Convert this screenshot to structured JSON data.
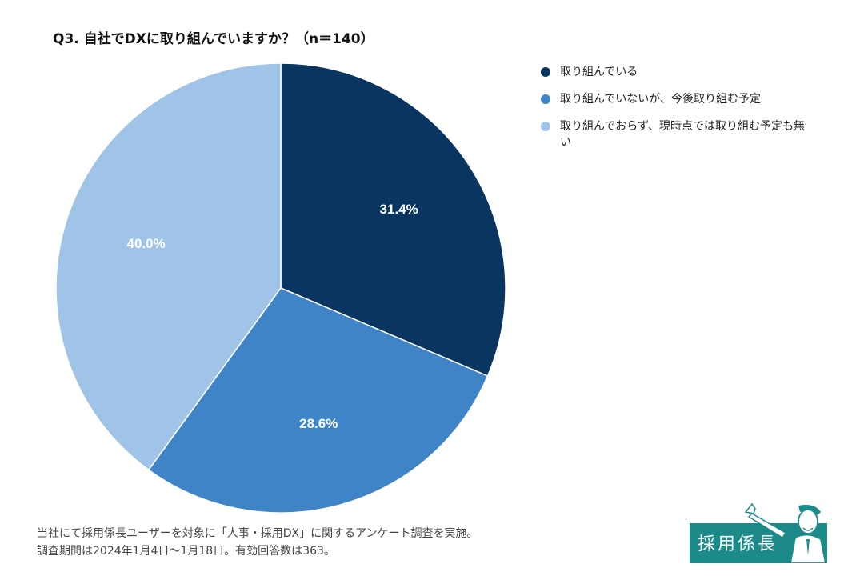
{
  "chart_data": {
    "type": "pie",
    "title": "Q3. 自社でDXに取り組んでいますか？（n＝140）",
    "slices": [
      {
        "label": "取り組んでいる",
        "value": 31.4,
        "display": "31.4%",
        "color": "#0a3560"
      },
      {
        "label": "取り組んでいないが、今後取り組む予定",
        "value": 28.6,
        "display": "28.6%",
        "color": "#3f84c7"
      },
      {
        "label": "取り組んでおらず、現時点では取り組む予定も無い",
        "value": 40.0,
        "display": "40.0%",
        "color": "#9fc4e7"
      }
    ],
    "legend_position": "top-right",
    "start_angle": "12 o'clock",
    "direction": "clockwise"
  },
  "footnote": {
    "line1": "当社にて採用係長ユーザーを対象に「人事・採用DX」に関するアンケート調査を実施。",
    "line2": "調査期間は2024年1月4日〜1月18日。有効回答数は363。"
  },
  "logo": {
    "text": "採用係長",
    "color": "#1d8a8a"
  }
}
